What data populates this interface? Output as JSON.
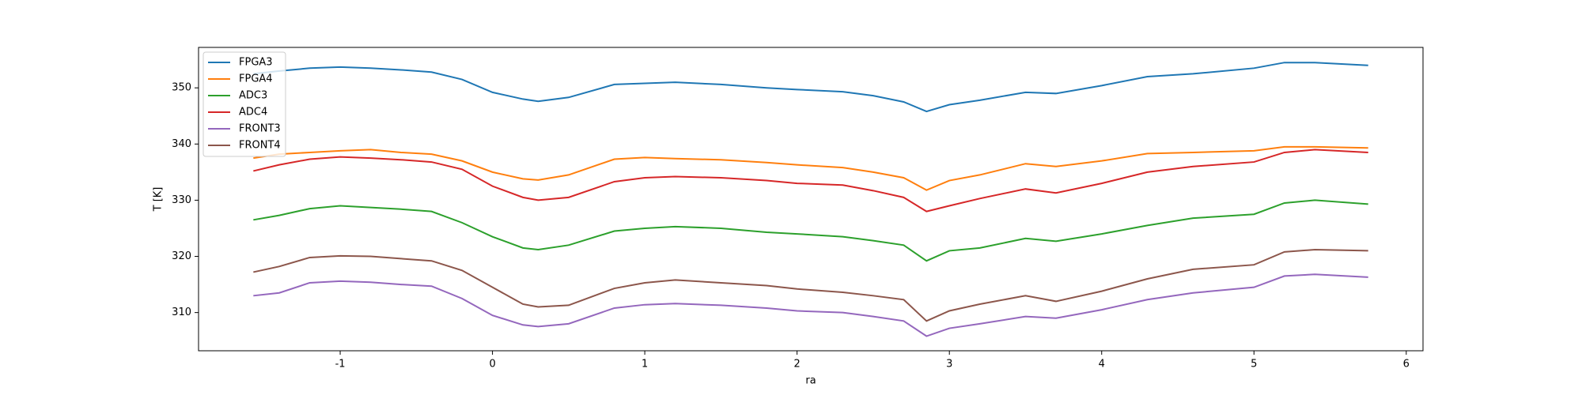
{
  "chart_data": {
    "type": "line",
    "xlabel": "ra",
    "ylabel": "T [K]",
    "x": [
      -1.57,
      -1.4,
      -1.2,
      -1.0,
      -0.8,
      -0.6,
      -0.4,
      -0.2,
      0,
      0.2,
      0.3,
      0.5,
      0.8,
      1.0,
      1.2,
      1.5,
      1.8,
      2.0,
      2.3,
      2.5,
      2.7,
      2.85,
      3.0,
      3.2,
      3.5,
      3.7,
      4.0,
      4.3,
      4.6,
      5.0,
      5.2,
      5.4,
      5.75
    ],
    "series": [
      {
        "name": "FPGA3",
        "color": "#1f77b4",
        "values": [
          352.5,
          353,
          353.5,
          353.7,
          353.5,
          353.2,
          352.8,
          351.5,
          349.2,
          348,
          347.6,
          348.3,
          350.6,
          350.8,
          351,
          350.6,
          350,
          349.7,
          349.3,
          348.6,
          347.5,
          345.8,
          347,
          347.8,
          349.2,
          349,
          350.4,
          352,
          352.5,
          353.5,
          354.5,
          354.5,
          354
        ]
      },
      {
        "name": "FPGA4",
        "color": "#ff7f0e",
        "values": [
          337.5,
          338.2,
          338.5,
          338.8,
          339,
          338.5,
          338.2,
          337,
          335,
          333.8,
          333.6,
          334.5,
          337.3,
          337.6,
          337.4,
          337.2,
          336.7,
          336.3,
          335.8,
          335,
          334,
          331.8,
          333.5,
          334.5,
          336.5,
          336,
          337,
          338.3,
          338.5,
          338.8,
          339.5,
          339.5,
          339.3
        ]
      },
      {
        "name": "ADC3",
        "color": "#2ca02c",
        "values": [
          326.5,
          327.3,
          328.5,
          329,
          328.7,
          328.4,
          328,
          326,
          323.5,
          321.5,
          321.2,
          322,
          324.5,
          325,
          325.3,
          325,
          324.3,
          324,
          323.5,
          322.8,
          322,
          319.2,
          321,
          321.5,
          323.2,
          322.7,
          324,
          325.5,
          326.8,
          327.5,
          329.5,
          330,
          329.3
        ]
      },
      {
        "name": "ADC4",
        "color": "#d62728",
        "values": [
          335.2,
          336.3,
          337.3,
          337.7,
          337.5,
          337.2,
          336.8,
          335.5,
          332.5,
          330.5,
          330,
          330.5,
          333.3,
          334,
          334.2,
          334,
          333.5,
          333,
          332.7,
          331.7,
          330.5,
          328,
          329,
          330.3,
          332,
          331.3,
          333,
          335,
          336,
          336.8,
          338.5,
          339,
          338.5
        ]
      },
      {
        "name": "FRONT3",
        "color": "#9467bd",
        "values": [
          313,
          313.5,
          315.3,
          315.6,
          315.4,
          315,
          314.7,
          312.5,
          309.5,
          307.8,
          307.5,
          308,
          310.8,
          311.4,
          311.6,
          311.3,
          310.8,
          310.3,
          310,
          309.3,
          308.5,
          305.8,
          307.2,
          308,
          309.3,
          309,
          310.5,
          312.3,
          313.5,
          314.5,
          316.5,
          316.8,
          316.3
        ]
      },
      {
        "name": "FRONT4",
        "color": "#8c564b",
        "values": [
          317.2,
          318.2,
          319.8,
          320.1,
          320,
          319.6,
          319.2,
          317.5,
          314.5,
          311.5,
          311,
          311.3,
          314.3,
          315.3,
          315.8,
          315.3,
          314.8,
          314.2,
          313.6,
          313,
          312.3,
          308.5,
          310.3,
          311.5,
          313,
          312,
          313.8,
          316,
          317.7,
          318.5,
          320.8,
          321.2,
          321
        ]
      }
    ],
    "xlim": [
      -1.93,
      6.11
    ],
    "ylim": [
      303.2,
      357.2
    ],
    "xticks": [
      -1,
      0,
      1,
      2,
      3,
      4,
      5,
      6
    ],
    "yticks": [
      310,
      320,
      330,
      340,
      350
    ],
    "legend": "upper left"
  }
}
